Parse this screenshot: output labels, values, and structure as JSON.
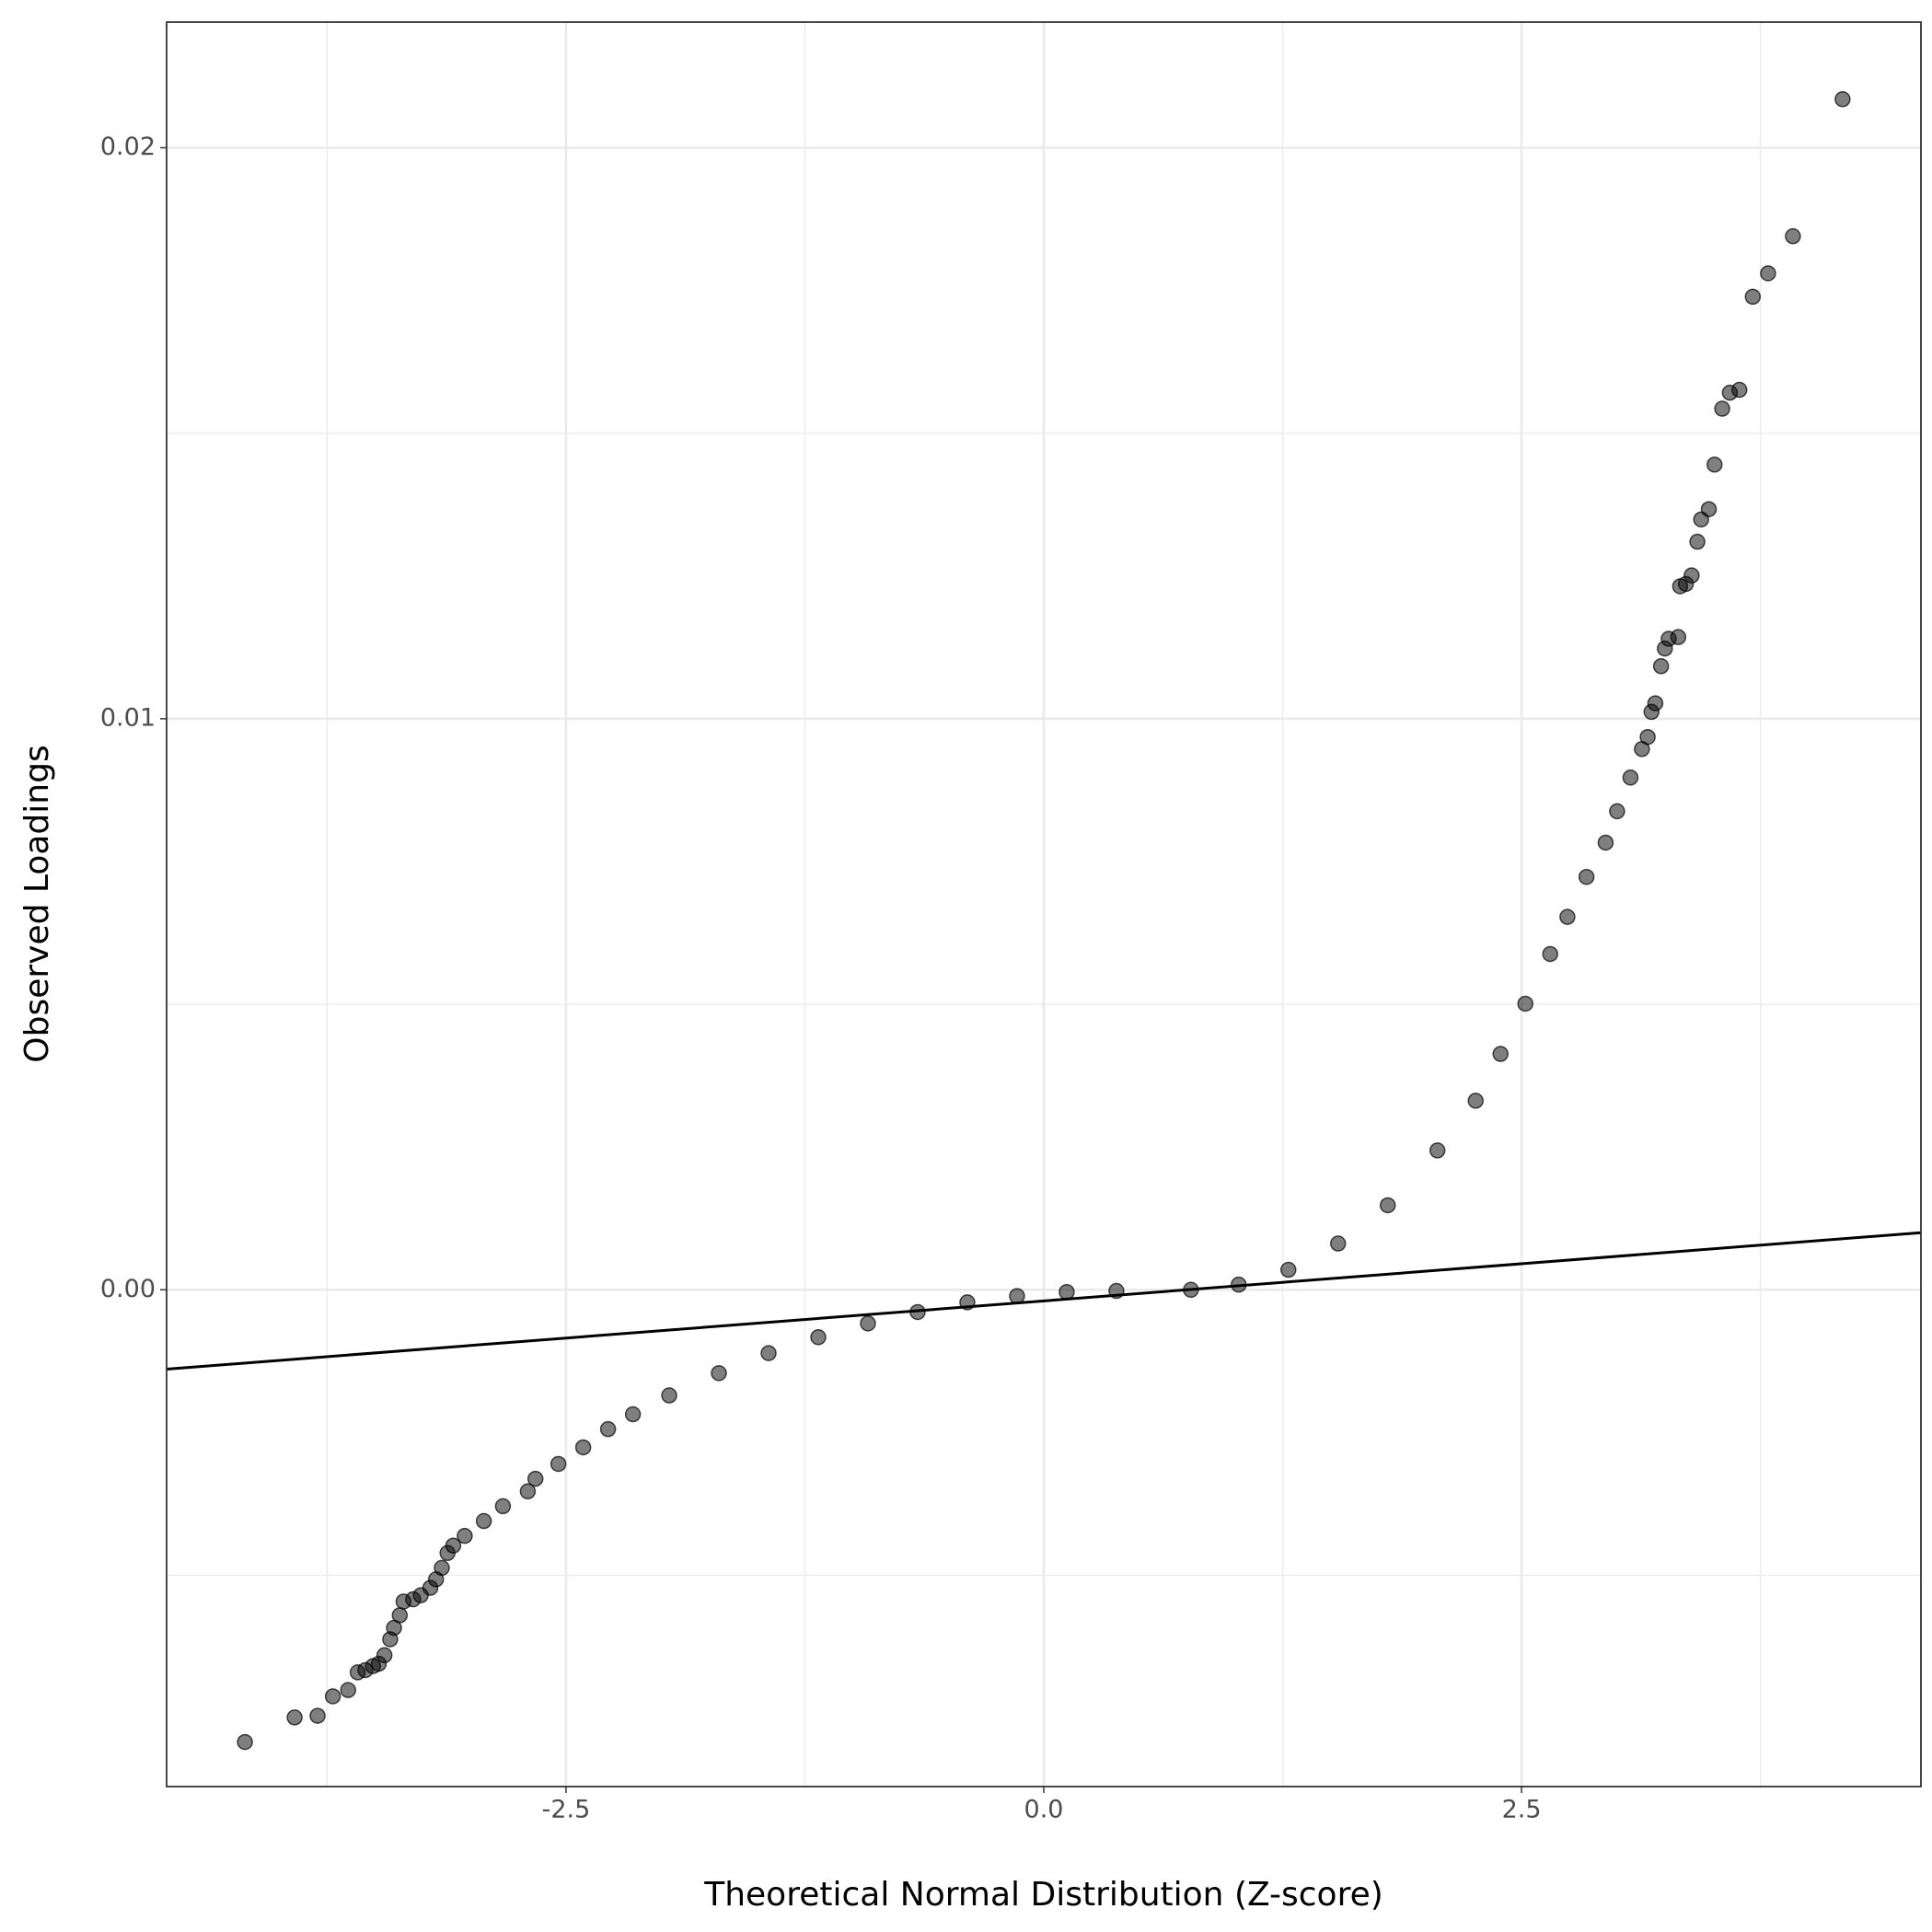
{
  "chart_data": {
    "type": "scatter",
    "xlabel": "Theoretical Normal Distribution (Z-score)",
    "ylabel": "Observed Loadings",
    "xlim": [
      -4.59,
      4.59
    ],
    "ylim": [
      -0.0087,
      0.0222
    ],
    "xticks": [
      -2.5,
      {
        "value": 0,
        "label": "0.0"
      },
      2.5
    ],
    "yticks": [
      {
        "value": 0,
        "label": "0.00"
      },
      0.01,
      0.02
    ],
    "minor_xticks": [
      -3.75,
      -1.25,
      1.25,
      3.75
    ],
    "minor_yticks": [
      -0.005,
      0.005,
      0.015
    ],
    "grid": true,
    "color": "#000000",
    "x": [
      -4.18,
      -3.92,
      -3.8,
      -3.72,
      -3.64,
      -3.59,
      -3.55,
      -3.51,
      -3.48,
      -3.45,
      -3.42,
      -3.4,
      -3.37,
      -3.35,
      -3.3,
      -3.26,
      -3.21,
      -3.18,
      -3.15,
      -3.12,
      -3.09,
      -3.03,
      -2.93,
      -2.83,
      -2.7,
      -2.66,
      -2.54,
      -2.41,
      -2.28,
      -2.15,
      -1.96,
      -1.7,
      -1.44,
      -1.18,
      -0.92,
      -0.66,
      -0.4,
      -0.14,
      0.12,
      0.38,
      0.77,
      1.02,
      1.28,
      1.54,
      1.8,
      2.06,
      2.26,
      2.39,
      2.52,
      2.65,
      2.74,
      2.84,
      2.94,
      3.0,
      3.07,
      3.13,
      3.16,
      3.18,
      3.2,
      3.23,
      3.25,
      3.27,
      3.32,
      3.33,
      3.36,
      3.39,
      3.42,
      3.44,
      3.48,
      3.51,
      3.55,
      3.59,
      3.64,
      3.71,
      3.79,
      3.92,
      4.18
    ],
    "values": [
      -0.00792,
      -0.00749,
      -0.00746,
      -0.00712,
      -0.00701,
      -0.0067,
      -0.00666,
      -0.00659,
      -0.00655,
      -0.0064,
      -0.00612,
      -0.00592,
      -0.0057,
      -0.00546,
      -0.00542,
      -0.00535,
      -0.00522,
      -0.00507,
      -0.00487,
      -0.00461,
      -0.00448,
      -0.00431,
      -0.00405,
      -0.00379,
      -0.00353,
      -0.00331,
      -0.00305,
      -0.00276,
      -0.00244,
      -0.00218,
      -0.00185,
      -0.00146,
      -0.00111,
      -0.00083,
      -0.00059,
      -0.00039,
      -0.00022,
      -0.00011,
      -4e-05,
      -2e-05,
      0,
      9e-05,
      0.00035,
      0.00081,
      0.00148,
      0.00244,
      0.00331,
      0.00413,
      0.00501,
      0.00588,
      0.00653,
      0.00723,
      0.00783,
      0.00838,
      0.00897,
      0.00947,
      0.00968,
      0.01012,
      0.01027,
      0.01092,
      0.01123,
      0.0114,
      0.01143,
      0.01232,
      0.01236,
      0.01251,
      0.0131,
      0.01349,
      0.01367,
      0.01445,
      0.01543,
      0.01571,
      0.01576,
      0.01739,
      0.0178,
      0.01845,
      0.02085
    ],
    "reference_line": {
      "x": [
        -4.59,
        4.59
      ],
      "y": [
        -0.00139,
        0.001
      ]
    }
  }
}
